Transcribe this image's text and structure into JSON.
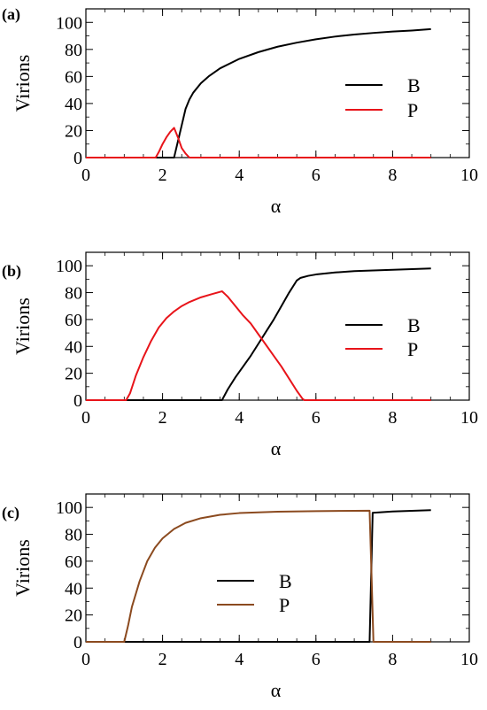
{
  "chart_data": [
    {
      "panel_label": "(a)",
      "type": "line",
      "xlabel": "α",
      "ylabel": "Virions",
      "xlim": [
        0,
        10
      ],
      "ylim": [
        0,
        110
      ],
      "xticks": [
        0,
        2,
        4,
        6,
        8,
        10
      ],
      "yticks": [
        0,
        20,
        40,
        60,
        80,
        100
      ],
      "grid": false,
      "legend_position": "right",
      "series": [
        {
          "name": "B",
          "color": "#000000",
          "points": [
            [
              0,
              0
            ],
            [
              2.3,
              0
            ],
            [
              2.4,
              12
            ],
            [
              2.5,
              24
            ],
            [
              2.6,
              36
            ],
            [
              2.7,
              43
            ],
            [
              2.8,
              48
            ],
            [
              3.0,
              55
            ],
            [
              3.2,
              60
            ],
            [
              3.5,
              66
            ],
            [
              4.0,
              73
            ],
            [
              4.5,
              78
            ],
            [
              5.0,
              82
            ],
            [
              5.5,
              85
            ],
            [
              6.0,
              87.5
            ],
            [
              6.5,
              89.5
            ],
            [
              7.0,
              91
            ],
            [
              7.5,
              92.2
            ],
            [
              8.0,
              93.2
            ],
            [
              8.5,
              94
            ],
            [
              9.0,
              95
            ]
          ]
        },
        {
          "name": "P",
          "color": "#e8141a",
          "points": [
            [
              0,
              0
            ],
            [
              1.82,
              0
            ],
            [
              1.9,
              4
            ],
            [
              2.0,
              10
            ],
            [
              2.1,
              15
            ],
            [
              2.2,
              19
            ],
            [
              2.3,
              22
            ],
            [
              2.4,
              15
            ],
            [
              2.5,
              7
            ],
            [
              2.6,
              3
            ],
            [
              2.7,
              0
            ],
            [
              9.0,
              0
            ]
          ]
        }
      ]
    },
    {
      "panel_label": "(b)",
      "type": "line",
      "xlabel": "α",
      "ylabel": "Virions",
      "xlim": [
        0,
        10
      ],
      "ylim": [
        0,
        110
      ],
      "xticks": [
        0,
        2,
        4,
        6,
        8,
        10
      ],
      "yticks": [
        0,
        20,
        40,
        60,
        80,
        100
      ],
      "grid": false,
      "legend_position": "right",
      "series": [
        {
          "name": "B",
          "color": "#000000",
          "points": [
            [
              0,
              0
            ],
            [
              3.55,
              0
            ],
            [
              3.7,
              8
            ],
            [
              3.9,
              17
            ],
            [
              4.1,
              25
            ],
            [
              4.3,
              33
            ],
            [
              4.5,
              42
            ],
            [
              4.7,
              51
            ],
            [
              4.9,
              60
            ],
            [
              5.1,
              70
            ],
            [
              5.3,
              80
            ],
            [
              5.5,
              89
            ],
            [
              5.6,
              91
            ],
            [
              5.8,
              92.5
            ],
            [
              6.0,
              93.5
            ],
            [
              6.5,
              95
            ],
            [
              7.0,
              96
            ],
            [
              7.5,
              96.5
            ],
            [
              8.0,
              97
            ],
            [
              8.5,
              97.5
            ],
            [
              9.0,
              98
            ]
          ]
        },
        {
          "name": "P",
          "color": "#e8141a",
          "points": [
            [
              0,
              0
            ],
            [
              1.05,
              0
            ],
            [
              1.15,
              5
            ],
            [
              1.3,
              18
            ],
            [
              1.5,
              32
            ],
            [
              1.7,
              44
            ],
            [
              1.9,
              54
            ],
            [
              2.1,
              61
            ],
            [
              2.3,
              66
            ],
            [
              2.5,
              70
            ],
            [
              2.7,
              73
            ],
            [
              3.0,
              76.5
            ],
            [
              3.3,
              79
            ],
            [
              3.55,
              81
            ],
            [
              3.7,
              77
            ],
            [
              3.9,
              70
            ],
            [
              4.1,
              63
            ],
            [
              4.3,
              57
            ],
            [
              4.5,
              49
            ],
            [
              4.7,
              41
            ],
            [
              4.9,
              33
            ],
            [
              5.1,
              25
            ],
            [
              5.3,
              16
            ],
            [
              5.5,
              7
            ],
            [
              5.65,
              1
            ],
            [
              5.7,
              0
            ],
            [
              9.0,
              0
            ]
          ]
        }
      ]
    },
    {
      "panel_label": "(c)",
      "type": "line",
      "xlabel": "α",
      "ylabel": "Virions",
      "xlim": [
        0,
        10
      ],
      "ylim": [
        0,
        110
      ],
      "xticks": [
        0,
        2,
        4,
        6,
        8,
        10
      ],
      "yticks": [
        0,
        20,
        40,
        60,
        80,
        100
      ],
      "grid": false,
      "legend_position": "center",
      "series": [
        {
          "name": "B",
          "color": "#000000",
          "points": [
            [
              0,
              0
            ],
            [
              7.4,
              0
            ],
            [
              7.48,
              96
            ],
            [
              8.0,
              97
            ],
            [
              8.5,
              97.5
            ],
            [
              9.0,
              98
            ]
          ]
        },
        {
          "name": "P",
          "color": "#8b4a1f",
          "points": [
            [
              0,
              0
            ],
            [
              1.0,
              0
            ],
            [
              1.1,
              12
            ],
            [
              1.2,
              26
            ],
            [
              1.4,
              45
            ],
            [
              1.6,
              60
            ],
            [
              1.8,
              70
            ],
            [
              2.0,
              77
            ],
            [
              2.3,
              84
            ],
            [
              2.6,
              88.5
            ],
            [
              3.0,
              92
            ],
            [
              3.5,
              94.5
            ],
            [
              4.0,
              95.8
            ],
            [
              5.0,
              96.8
            ],
            [
              6.0,
              97.2
            ],
            [
              7.0,
              97.5
            ],
            [
              7.4,
              97.6
            ],
            [
              7.45,
              50
            ],
            [
              7.5,
              0
            ],
            [
              9.0,
              0
            ]
          ]
        }
      ]
    }
  ]
}
